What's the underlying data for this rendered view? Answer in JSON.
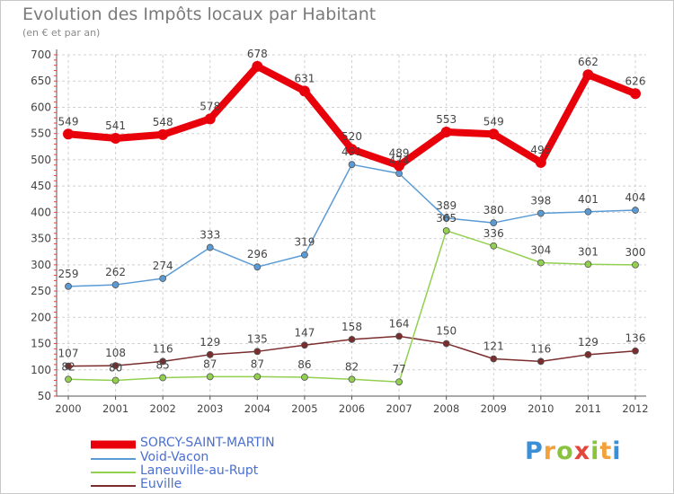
{
  "title": "Evolution des Impôts locaux par Habitant",
  "subtitle": "(en € et par an)",
  "logo_text": "Proxiti",
  "chart_data": {
    "type": "line",
    "title": "Evolution des Impôts locaux par Habitant",
    "subtitle": "(en € et par an)",
    "xlabel": "",
    "ylabel": "",
    "x": [
      "2000",
      "2001",
      "2002",
      "2003",
      "2004",
      "2005",
      "2006",
      "2007",
      "2008",
      "2009",
      "2010",
      "2011",
      "2012"
    ],
    "ylim": [
      50,
      700
    ],
    "yticks": [
      50,
      100,
      150,
      200,
      250,
      300,
      350,
      400,
      450,
      500,
      550,
      600,
      650,
      700
    ],
    "grid": true,
    "legend_position": "bottom-left",
    "series": [
      {
        "name": "SORCY-SAINT-MARTIN",
        "color": "#e8000b",
        "values": [
          549,
          541,
          548,
          578,
          678,
          631,
          520,
          489,
          553,
          549,
          495,
          662,
          626
        ]
      },
      {
        "name": "Void-Vacon",
        "color": "#5b9bd5",
        "values": [
          259,
          262,
          274,
          333,
          296,
          319,
          491,
          474,
          389,
          380,
          398,
          401,
          404
        ]
      },
      {
        "name": "Laneuville-au-Rupt",
        "color": "#92d050",
        "values": [
          82,
          80,
          85,
          87,
          87,
          86,
          82,
          77,
          365,
          336,
          304,
          301,
          300
        ]
      },
      {
        "name": "Euville",
        "color": "#7b2c2c",
        "values": [
          107,
          108,
          116,
          129,
          135,
          147,
          158,
          164,
          150,
          121,
          116,
          129,
          136
        ]
      }
    ]
  }
}
